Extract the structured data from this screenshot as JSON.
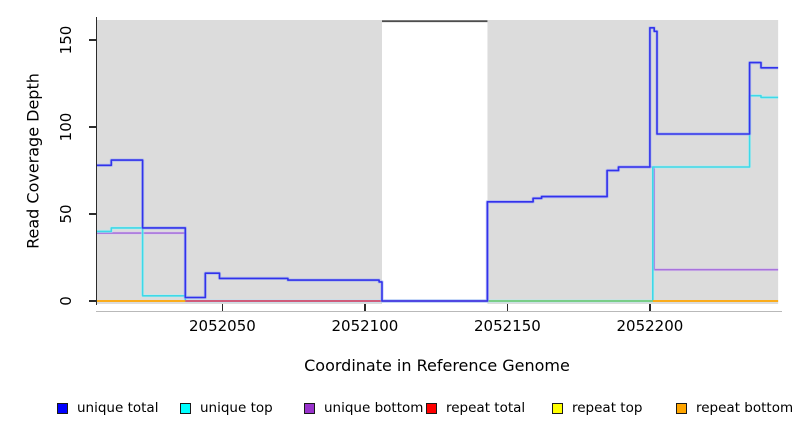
{
  "chart_data": {
    "type": "line",
    "subtype": "step-coverage",
    "title": "",
    "xlabel": "Coordinate in Reference Genome",
    "ylabel": "Read Coverage Depth",
    "xlim": [
      2052006,
      2052246
    ],
    "ylim": [
      0,
      163
    ],
    "y_axis_max_tick": 150,
    "grid": "off",
    "xticks": [
      2052050,
      2052100,
      2052150,
      2052200
    ],
    "xtick_labels": [
      "2052050",
      "2052100",
      "2052150",
      "2052200"
    ],
    "yticks": [
      0,
      50,
      100,
      150
    ],
    "ytick_labels": [
      "0",
      "50",
      "100",
      "150"
    ],
    "background_regions": [
      {
        "from": 2052006,
        "to": 2052106
      },
      {
        "from": 2052143,
        "to": 2052245
      }
    ],
    "gap_top_border": {
      "from": 2052106,
      "to": 2052143,
      "color": "#4d4d4d"
    },
    "zero_segments": [
      {
        "from": 2052006,
        "to": 2052037,
        "color": "#FFA500"
      },
      {
        "from": 2052037,
        "to": 2052143,
        "color": "#DC4A6A"
      },
      {
        "from": 2052143,
        "to": 2052201,
        "color": "#7ACC7A"
      },
      {
        "from": 2052201,
        "to": 2052245,
        "color": "#FFA500"
      }
    ],
    "series": [
      {
        "id": "unique-bottom",
        "name": "unique bottom",
        "color": "#A873DC",
        "halo": "#DCC8F2",
        "end": 2052245,
        "points": [
          [
            2052006,
            39
          ],
          [
            2052037,
            0
          ],
          [
            2052143,
            57
          ],
          [
            2052159,
            59
          ],
          [
            2052162,
            60
          ],
          [
            2052185,
            75
          ],
          [
            2052189,
            77
          ],
          [
            2052201.5,
            18
          ]
        ]
      },
      {
        "id": "unique-top",
        "name": "unique top",
        "color": "#3DD9E8",
        "halo": "#B0F0F6",
        "end": 2052245,
        "points": [
          [
            2052006,
            40
          ],
          [
            2052011,
            42
          ],
          [
            2052022,
            3
          ],
          [
            2052037,
            0
          ],
          [
            2052201,
            77
          ],
          [
            2052235,
            118
          ],
          [
            2052239,
            117
          ]
        ]
      },
      {
        "id": "unique-total",
        "name": "unique total",
        "color": "#3232EB",
        "halo": "#8FA6F6",
        "end": 2052245,
        "points": [
          [
            2052006,
            78
          ],
          [
            2052011,
            81
          ],
          [
            2052022,
            42
          ],
          [
            2052037,
            2
          ],
          [
            2052044,
            16
          ],
          [
            2052049,
            13
          ],
          [
            2052073,
            12
          ],
          [
            2052105,
            11
          ],
          [
            2052106,
            0
          ],
          [
            2052143,
            57
          ],
          [
            2052159,
            59
          ],
          [
            2052162,
            60
          ],
          [
            2052185,
            75
          ],
          [
            2052189,
            77
          ],
          [
            2052200,
            157
          ],
          [
            2052201.5,
            155
          ],
          [
            2052202.5,
            96
          ],
          [
            2052235,
            137
          ],
          [
            2052239,
            134
          ]
        ]
      }
    ]
  },
  "colors": {
    "panel_bg": "#DCDCDC",
    "axis": "#2b2b2b",
    "baseline": "#b9b9b9"
  },
  "legend": {
    "items": [
      {
        "label": "unique total",
        "color": "#0000FF"
      },
      {
        "label": "unique top",
        "color": "#00FFFF"
      },
      {
        "label": "unique bottom",
        "color": "#9933CC"
      },
      {
        "label": "repeat total",
        "color": "#FF0000"
      },
      {
        "label": "repeat top",
        "color": "#FFFF00"
      },
      {
        "label": "repeat bottom",
        "color": "#FFA500"
      }
    ]
  }
}
